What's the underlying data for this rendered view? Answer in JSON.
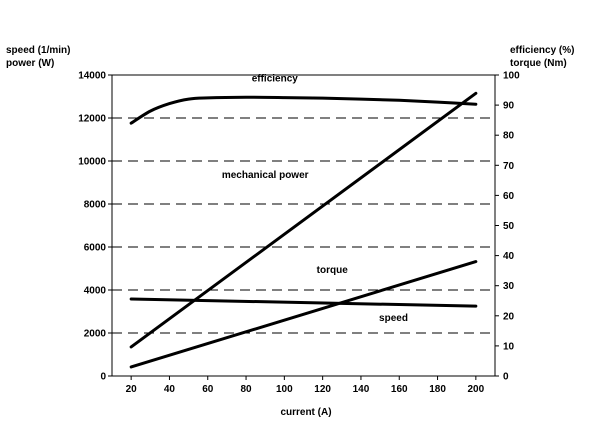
{
  "chart_data": {
    "type": "line",
    "title": "",
    "xlabel": "current (A)",
    "ylabel_left": [
      "speed (1/min)",
      "power (W)"
    ],
    "ylabel_right": [
      "efficiency (%)",
      "torque (Nm)"
    ],
    "xlim": [
      10,
      210
    ],
    "ylim_left": [
      0,
      14000
    ],
    "ylim_right": [
      0,
      100
    ],
    "grid": "horizontal dashed",
    "x_ticks": [
      20,
      40,
      60,
      80,
      100,
      120,
      140,
      160,
      180,
      200
    ],
    "y_left_ticks": [
      0,
      2000,
      4000,
      6000,
      8000,
      10000,
      12000,
      14000
    ],
    "y_right_ticks": [
      0,
      10,
      20,
      30,
      40,
      50,
      60,
      70,
      80,
      90,
      100
    ],
    "series": [
      {
        "name": "efficiency",
        "axis": "right",
        "x": [
          20,
          30,
          40,
          50,
          60,
          80,
          100,
          120,
          140,
          160,
          180,
          200
        ],
        "y": [
          84,
          88,
          90.5,
          92,
          92.4,
          92.6,
          92.5,
          92.3,
          92,
          91.6,
          91,
          90.3
        ]
      },
      {
        "name": "mechanical power",
        "axis": "left",
        "x": [
          20,
          200
        ],
        "y": [
          1350,
          13150
        ]
      },
      {
        "name": "torque",
        "axis": "right",
        "x": [
          20,
          200
        ],
        "y": [
          3,
          38
        ]
      },
      {
        "name": "speed",
        "axis": "left",
        "x": [
          20,
          200
        ],
        "y": [
          3580,
          3250
        ]
      }
    ],
    "annotations": [
      {
        "text": "efficiency",
        "x": 95,
        "y": 13700,
        "axis": "left"
      },
      {
        "text": "mechanical power",
        "x": 90,
        "y": 9200,
        "axis": "left"
      },
      {
        "text": "torque",
        "x": 125,
        "y": 4800,
        "axis": "left"
      },
      {
        "text": "speed",
        "x": 157,
        "y": 2550,
        "axis": "left"
      }
    ]
  }
}
